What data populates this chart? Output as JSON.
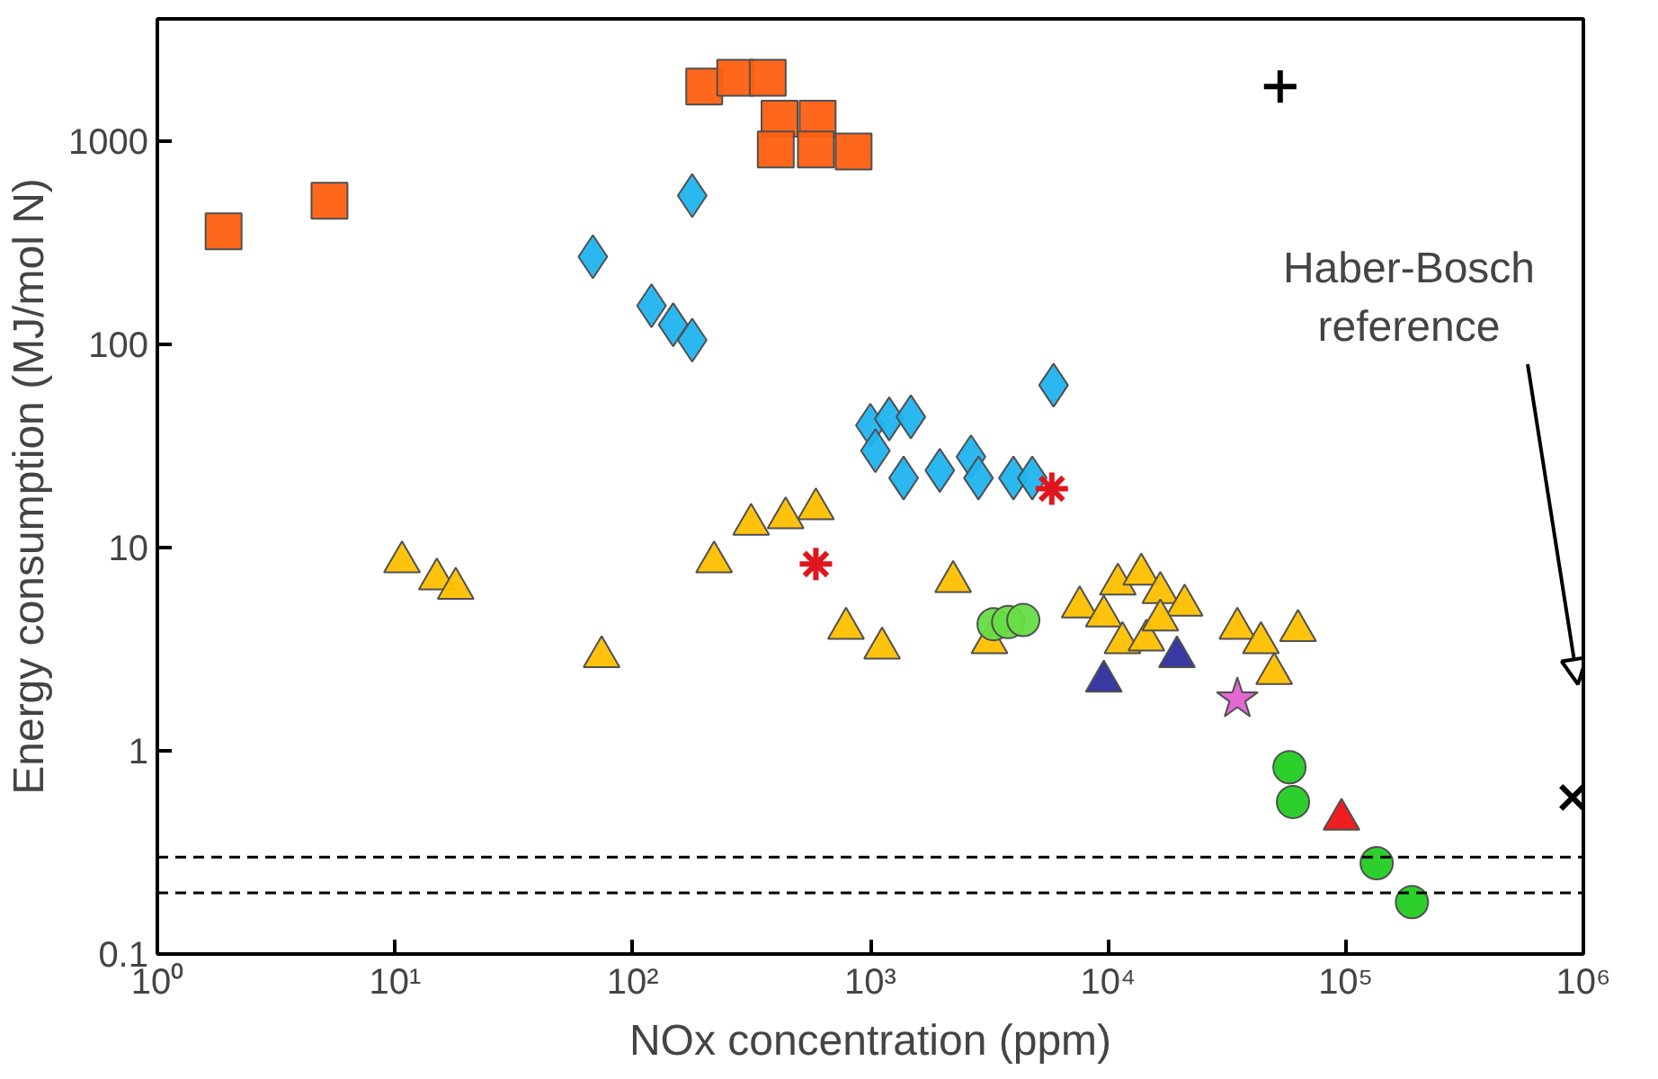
{
  "chart_data": {
    "type": "scatter",
    "xlabel": "NOx concentration (ppm)",
    "ylabel": "Energy consumption (MJ/mol N)",
    "log": "xy",
    "grid": false,
    "xlim": [
      1,
      1000000
    ],
    "ylim": [
      0.1,
      4000
    ],
    "xticks": [
      {
        "value": 1,
        "label": "10⁰"
      },
      {
        "value": 10,
        "label": "10¹"
      },
      {
        "value": 100,
        "label": "10²"
      },
      {
        "value": 1000,
        "label": "10³"
      },
      {
        "value": 10000,
        "label": "10⁴"
      },
      {
        "value": 100000,
        "label": "10⁵"
      },
      {
        "value": 1000000,
        "label": "10⁶"
      }
    ],
    "yticks": [
      0.1,
      1,
      10,
      100,
      1000
    ],
    "ref_lines": [
      {
        "axis": "y",
        "value": 0.3,
        "color": "#000000",
        "line_style": "dashed"
      },
      {
        "axis": "y",
        "value": 0.2,
        "color": "#000000",
        "line_style": "dashed"
      }
    ],
    "annotations": [
      "Haber-Bosch\nreference"
    ],
    "series": [
      {
        "color": "#ff6010",
        "marker": "square",
        "x": [
          1.9,
          5.3,
          200,
          270,
          370,
          415,
          600,
          400,
          590,
          850
        ],
        "values": [
          360,
          510,
          1860,
          2050,
          2050,
          1290,
          1290,
          910,
          910,
          890
        ]
      },
      {
        "color": "#20b4f0",
        "marker": "diamond",
        "x": [
          178,
          68,
          120,
          148,
          178,
          5900,
          1000,
          1200,
          1480,
          1050,
          1380,
          1960,
          2650,
          2850,
          4000,
          4800
        ],
        "values": [
          540,
          270,
          155,
          125,
          105,
          63,
          40,
          43,
          44,
          30,
          22,
          24,
          28,
          22,
          22,
          22
        ]
      },
      {
        "color": "#ffc000",
        "marker": "triangle",
        "x": [
          10.7,
          15,
          18,
          74,
          220,
          315,
          440,
          590,
          790,
          1120,
          2230,
          3170,
          7600,
          9600,
          11000,
          13800,
          16600,
          21000,
          11500,
          14500,
          35000,
          44000,
          63000,
          50000,
          16600
        ],
        "values": [
          8.5,
          7.0,
          6.3,
          2.9,
          8.5,
          13,
          14,
          15.5,
          4.0,
          3.2,
          6.8,
          3.4,
          5.1,
          4.6,
          6.6,
          7.4,
          6.0,
          5.2,
          3.4,
          3.5,
          4.0,
          3.4,
          3.9,
          2.4,
          4.4
        ]
      },
      {
        "color": "#e0161e",
        "x": [
          590,
          5800
        ],
        "values": [
          8.3,
          19.5
        ]
      },
      {
        "color": "#66dd44",
        "marker": "circle",
        "x": [
          3300,
          3800,
          4400
        ],
        "values": [
          4.2,
          4.3,
          4.4
        ]
      },
      {
        "color": "#2e2e9e",
        "marker": "triangle",
        "x": [
          9600,
          19500
        ],
        "values": [
          2.2,
          2.9
        ]
      },
      {
        "color": "#e060d0",
        "marker": "star",
        "x": [
          35000
        ],
        "values": [
          1.8
        ]
      },
      {
        "color": "#22cc22",
        "marker": "circle",
        "x": [
          58000,
          60000,
          135000,
          190000
        ],
        "values": [
          0.83,
          0.56,
          0.28,
          0.18
        ]
      },
      {
        "color": "#ee1111",
        "marker": "triangle",
        "x": [
          96000
        ],
        "values": [
          0.46
        ]
      },
      {
        "color": "#000000",
        "marker": "cross",
        "x": [
          53000
        ],
        "values": [
          1860
        ]
      },
      {
        "color": "#000000",
        "marker": "x",
        "x": [
          900000
        ],
        "values": [
          0.59
        ]
      }
    ]
  }
}
